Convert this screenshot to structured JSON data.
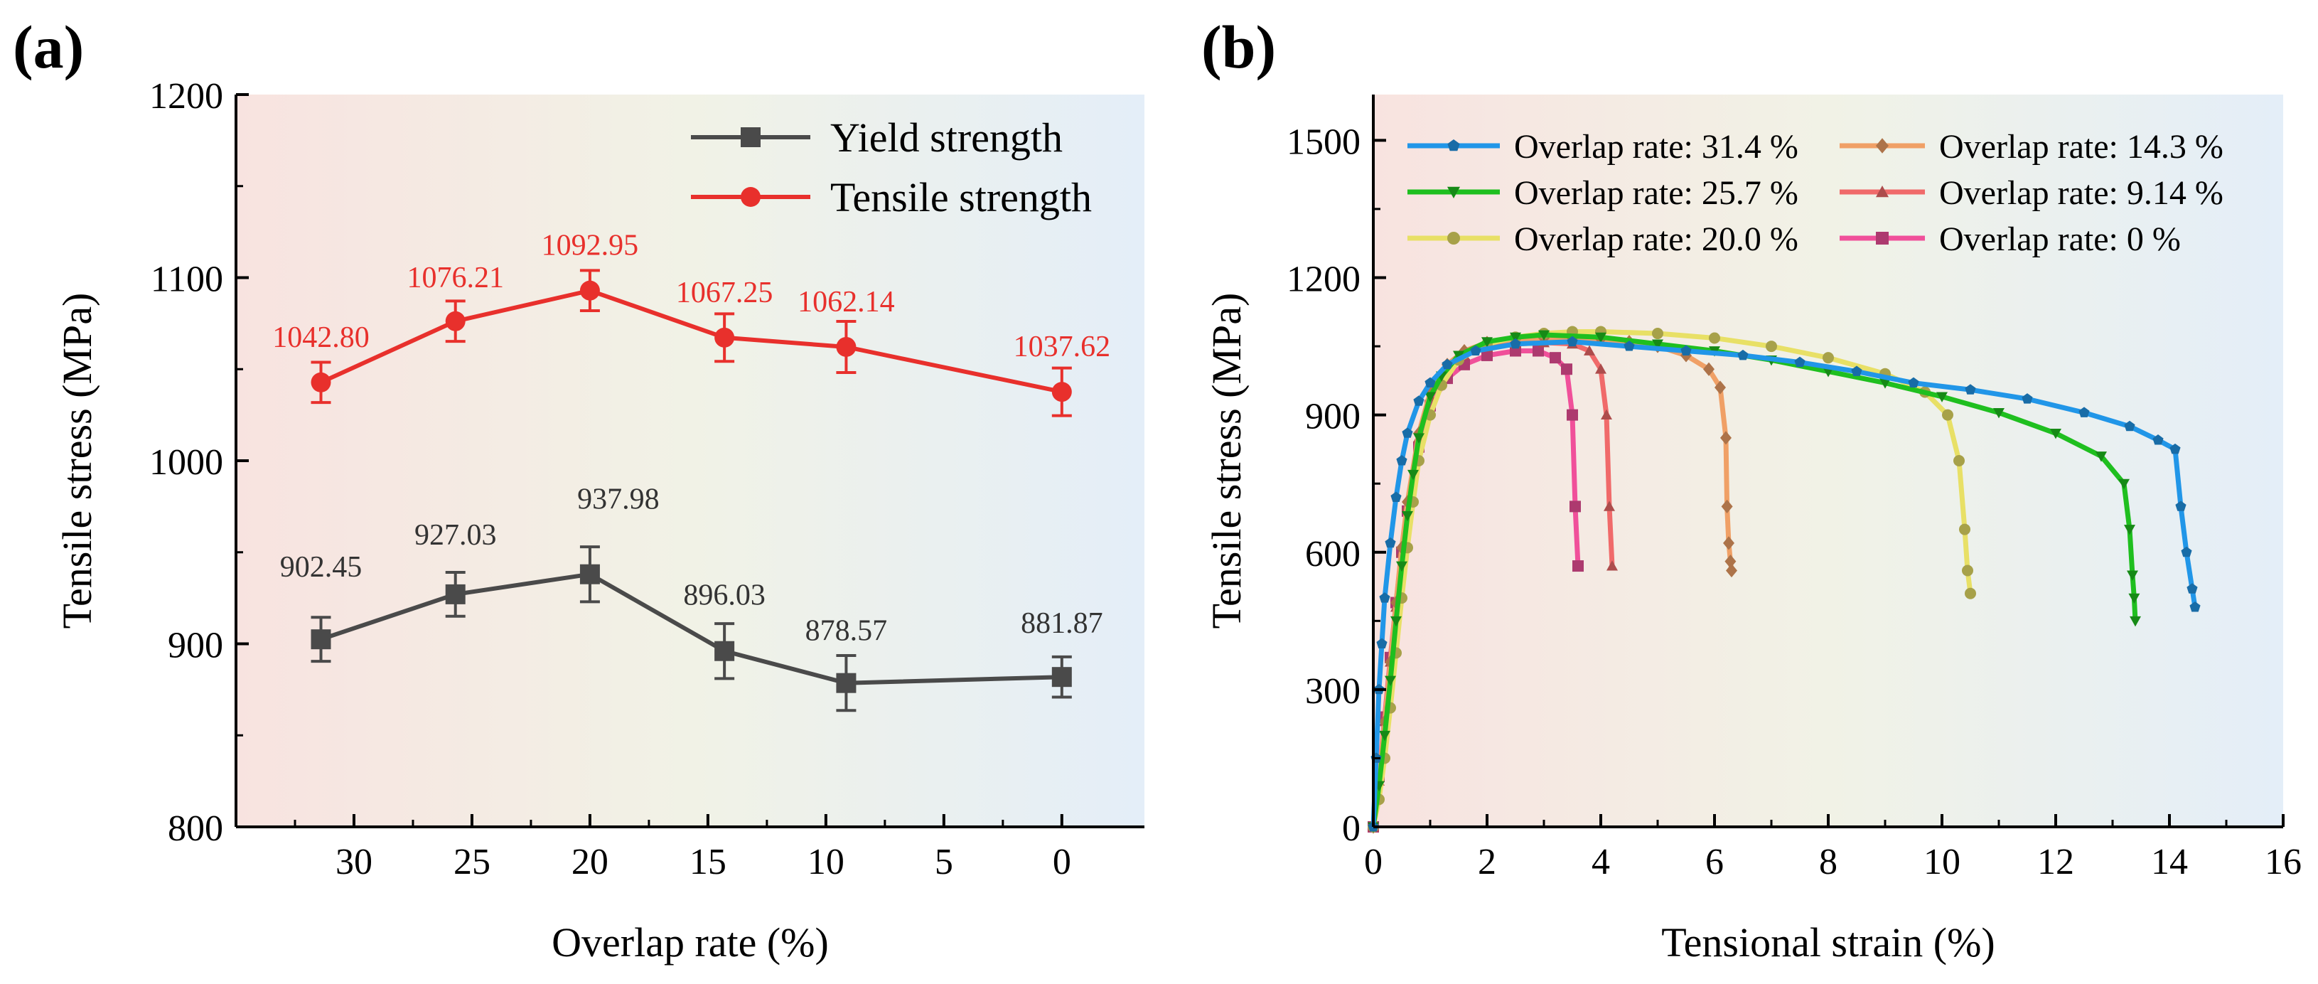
{
  "figure": {
    "panel_a_label": "(a)",
    "panel_b_label": "(b)"
  },
  "chart_data": [
    {
      "type": "line",
      "panel": "(a)",
      "xlabel": "Overlap rate (%)",
      "ylabel": "Tensile stress (MPa)",
      "xlim": [
        35,
        -3.5
      ],
      "ylim": [
        800,
        1200
      ],
      "xticks": [
        30,
        25,
        20,
        15,
        10,
        5,
        0
      ],
      "yticks": [
        800,
        900,
        1000,
        1100,
        1200
      ],
      "legend_position": "top-right",
      "series": [
        {
          "name": "Yield strength",
          "color": "#4a4a4a",
          "label_color": "#333333",
          "marker": "square",
          "x": [
            31.4,
            25.7,
            20.0,
            14.3,
            9.14,
            0
          ],
          "values": [
            902.45,
            927.03,
            937.98,
            896.03,
            878.57,
            881.87
          ],
          "errors": [
            12,
            12,
            15,
            15,
            15,
            11
          ],
          "labels": [
            "902.45",
            "927.03",
            "937.98",
            "896.03",
            "878.57",
            "881.87"
          ]
        },
        {
          "name": "Tensile strength",
          "color": "#e8302c",
          "label_color": "#e8302c",
          "marker": "circle",
          "x": [
            31.4,
            25.7,
            20.0,
            14.3,
            9.14,
            0
          ],
          "values": [
            1042.8,
            1076.21,
            1092.95,
            1067.25,
            1062.14,
            1037.62
          ],
          "errors": [
            11,
            11,
            11,
            13,
            14,
            13
          ],
          "labels": [
            "1042.80",
            "1076.21",
            "1092.95",
            "1067.25",
            "1062.14",
            "1037.62"
          ]
        }
      ]
    },
    {
      "type": "line",
      "panel": "(b)",
      "xlabel": "Tensional strain (%)",
      "ylabel": "Tensile stress (MPa)",
      "xlim": [
        0,
        16
      ],
      "ylim": [
        0,
        1600
      ],
      "xticks": [
        0,
        2,
        4,
        6,
        8,
        10,
        12,
        14,
        16
      ],
      "yticks": [
        0,
        300,
        600,
        900,
        1200,
        1500
      ],
      "legend_position": "top-left",
      "series": [
        {
          "name": "Overlap rate: 31.4 %",
          "color": "#2196e8",
          "marker": "pentagon",
          "x": [
            0,
            0.05,
            0.1,
            0.15,
            0.2,
            0.3,
            0.4,
            0.5,
            0.6,
            0.8,
            1.0,
            1.3,
            1.8,
            2.5,
            3.5,
            4.5,
            5.5,
            6.5,
            7.5,
            8.5,
            9.5,
            10.5,
            11.5,
            12.5,
            13.3,
            13.8,
            14.1,
            14.2,
            14.3,
            14.4,
            14.45
          ],
          "values": [
            0,
            150,
            300,
            400,
            500,
            620,
            720,
            800,
            860,
            930,
            970,
            1010,
            1040,
            1055,
            1060,
            1050,
            1040,
            1030,
            1015,
            995,
            970,
            955,
            935,
            905,
            875,
            845,
            825,
            700,
            600,
            520,
            480
          ]
        },
        {
          "name": "Overlap rate: 25.7 %",
          "color": "#1fbf1f",
          "marker": "triangle-down",
          "x": [
            0,
            0.1,
            0.2,
            0.3,
            0.4,
            0.5,
            0.6,
            0.7,
            0.8,
            1.0,
            1.2,
            1.5,
            2.0,
            2.5,
            3.0,
            4.0,
            5.0,
            6.0,
            7.0,
            8.0,
            9.0,
            10.0,
            11.0,
            12.0,
            12.8,
            13.2,
            13.3,
            13.35,
            13.38,
            13.4
          ],
          "values": [
            0,
            90,
            200,
            320,
            450,
            570,
            680,
            770,
            850,
            940,
            985,
            1030,
            1060,
            1070,
            1075,
            1070,
            1055,
            1040,
            1020,
            995,
            970,
            940,
            905,
            860,
            810,
            750,
            650,
            550,
            500,
            450
          ]
        },
        {
          "name": "Overlap rate: 20.0 %",
          "color": "#e8e066",
          "marker": "circle",
          "x": [
            0,
            0.1,
            0.2,
            0.3,
            0.4,
            0.5,
            0.6,
            0.7,
            0.8,
            1.0,
            1.2,
            1.5,
            2.0,
            2.5,
            3.0,
            3.5,
            4.0,
            5.0,
            6.0,
            7.0,
            8.0,
            9.0,
            9.7,
            10.1,
            10.3,
            10.4,
            10.45,
            10.5
          ],
          "values": [
            0,
            60,
            150,
            260,
            380,
            500,
            610,
            710,
            800,
            900,
            965,
            1020,
            1055,
            1070,
            1078,
            1082,
            1082,
            1078,
            1068,
            1050,
            1025,
            990,
            950,
            900,
            800,
            650,
            560,
            510
          ]
        },
        {
          "name": "Overlap rate: 14.3 %",
          "color": "#f0a066",
          "marker": "diamond",
          "x": [
            0,
            0.1,
            0.2,
            0.3,
            0.4,
            0.5,
            0.6,
            0.8,
            1.0,
            1.3,
            1.6,
            2.0,
            2.5,
            3.0,
            3.5,
            4.0,
            4.5,
            5.0,
            5.5,
            5.9,
            6.1,
            6.2,
            6.22,
            6.25,
            6.28,
            6.3
          ],
          "values": [
            0,
            100,
            230,
            360,
            490,
            610,
            710,
            860,
            950,
            1010,
            1040,
            1058,
            1065,
            1068,
            1068,
            1066,
            1060,
            1050,
            1030,
            1000,
            960,
            850,
            700,
            620,
            580,
            560
          ]
        },
        {
          "name": "Overlap rate: 9.14 %",
          "color": "#f06a6a",
          "marker": "triangle-up",
          "x": [
            0,
            0.1,
            0.2,
            0.3,
            0.4,
            0.5,
            0.6,
            0.8,
            1.0,
            1.3,
            1.6,
            2.0,
            2.5,
            3.0,
            3.5,
            3.8,
            4.0,
            4.1,
            4.15,
            4.2
          ],
          "values": [
            0,
            100,
            230,
            360,
            480,
            600,
            700,
            850,
            940,
            1000,
            1030,
            1048,
            1055,
            1058,
            1055,
            1040,
            1000,
            900,
            700,
            570
          ]
        },
        {
          "name": "Overlap rate: 0 %",
          "color": "#f0509a",
          "marker": "square",
          "x": [
            0,
            0.1,
            0.2,
            0.3,
            0.4,
            0.5,
            0.6,
            0.8,
            1.0,
            1.3,
            1.6,
            2.0,
            2.5,
            2.9,
            3.2,
            3.4,
            3.5,
            3.55,
            3.6
          ],
          "values": [
            0,
            110,
            240,
            370,
            490,
            600,
            690,
            830,
            920,
            980,
            1010,
            1030,
            1040,
            1040,
            1025,
            1000,
            900,
            700,
            570
          ]
        }
      ]
    }
  ]
}
